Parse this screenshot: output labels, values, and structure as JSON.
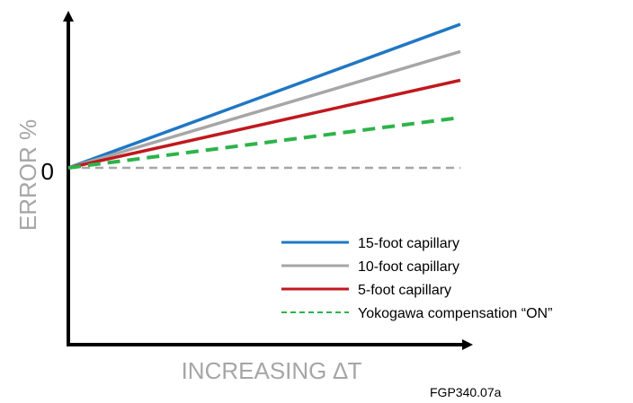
{
  "chart_data": {
    "type": "line",
    "title": "",
    "xlabel": "INCREASING ∆T",
    "ylabel": "ERROR %",
    "y_tick_label": "0",
    "x_tick_labels": [],
    "xlim": [
      0,
      1
    ],
    "ylim": [
      -1,
      1
    ],
    "grid": false,
    "legend_position": "bottom-right",
    "series": [
      {
        "name": "15-foot capillary",
        "x": [
          0,
          1
        ],
        "y": [
          0,
          1.0
        ],
        "color": "#1f77c4",
        "dash": "solid"
      },
      {
        "name": "10-foot capillary",
        "x": [
          0,
          1
        ],
        "y": [
          0,
          0.81
        ],
        "color": "#a6a6a6",
        "dash": "solid"
      },
      {
        "name": "5-foot capillary",
        "x": [
          0,
          1
        ],
        "y": [
          0,
          0.61
        ],
        "color": "#c0181e",
        "dash": "solid"
      },
      {
        "name": "Yokogawa compensation “ON”",
        "x": [
          0,
          1
        ],
        "y": [
          0,
          0.35
        ],
        "color": "#2db34a",
        "dash": "dashed"
      }
    ],
    "reference_line": {
      "y": 0,
      "color": "#a6a6a6",
      "dash": "dashed"
    },
    "footnote": "FGP340.07a"
  }
}
